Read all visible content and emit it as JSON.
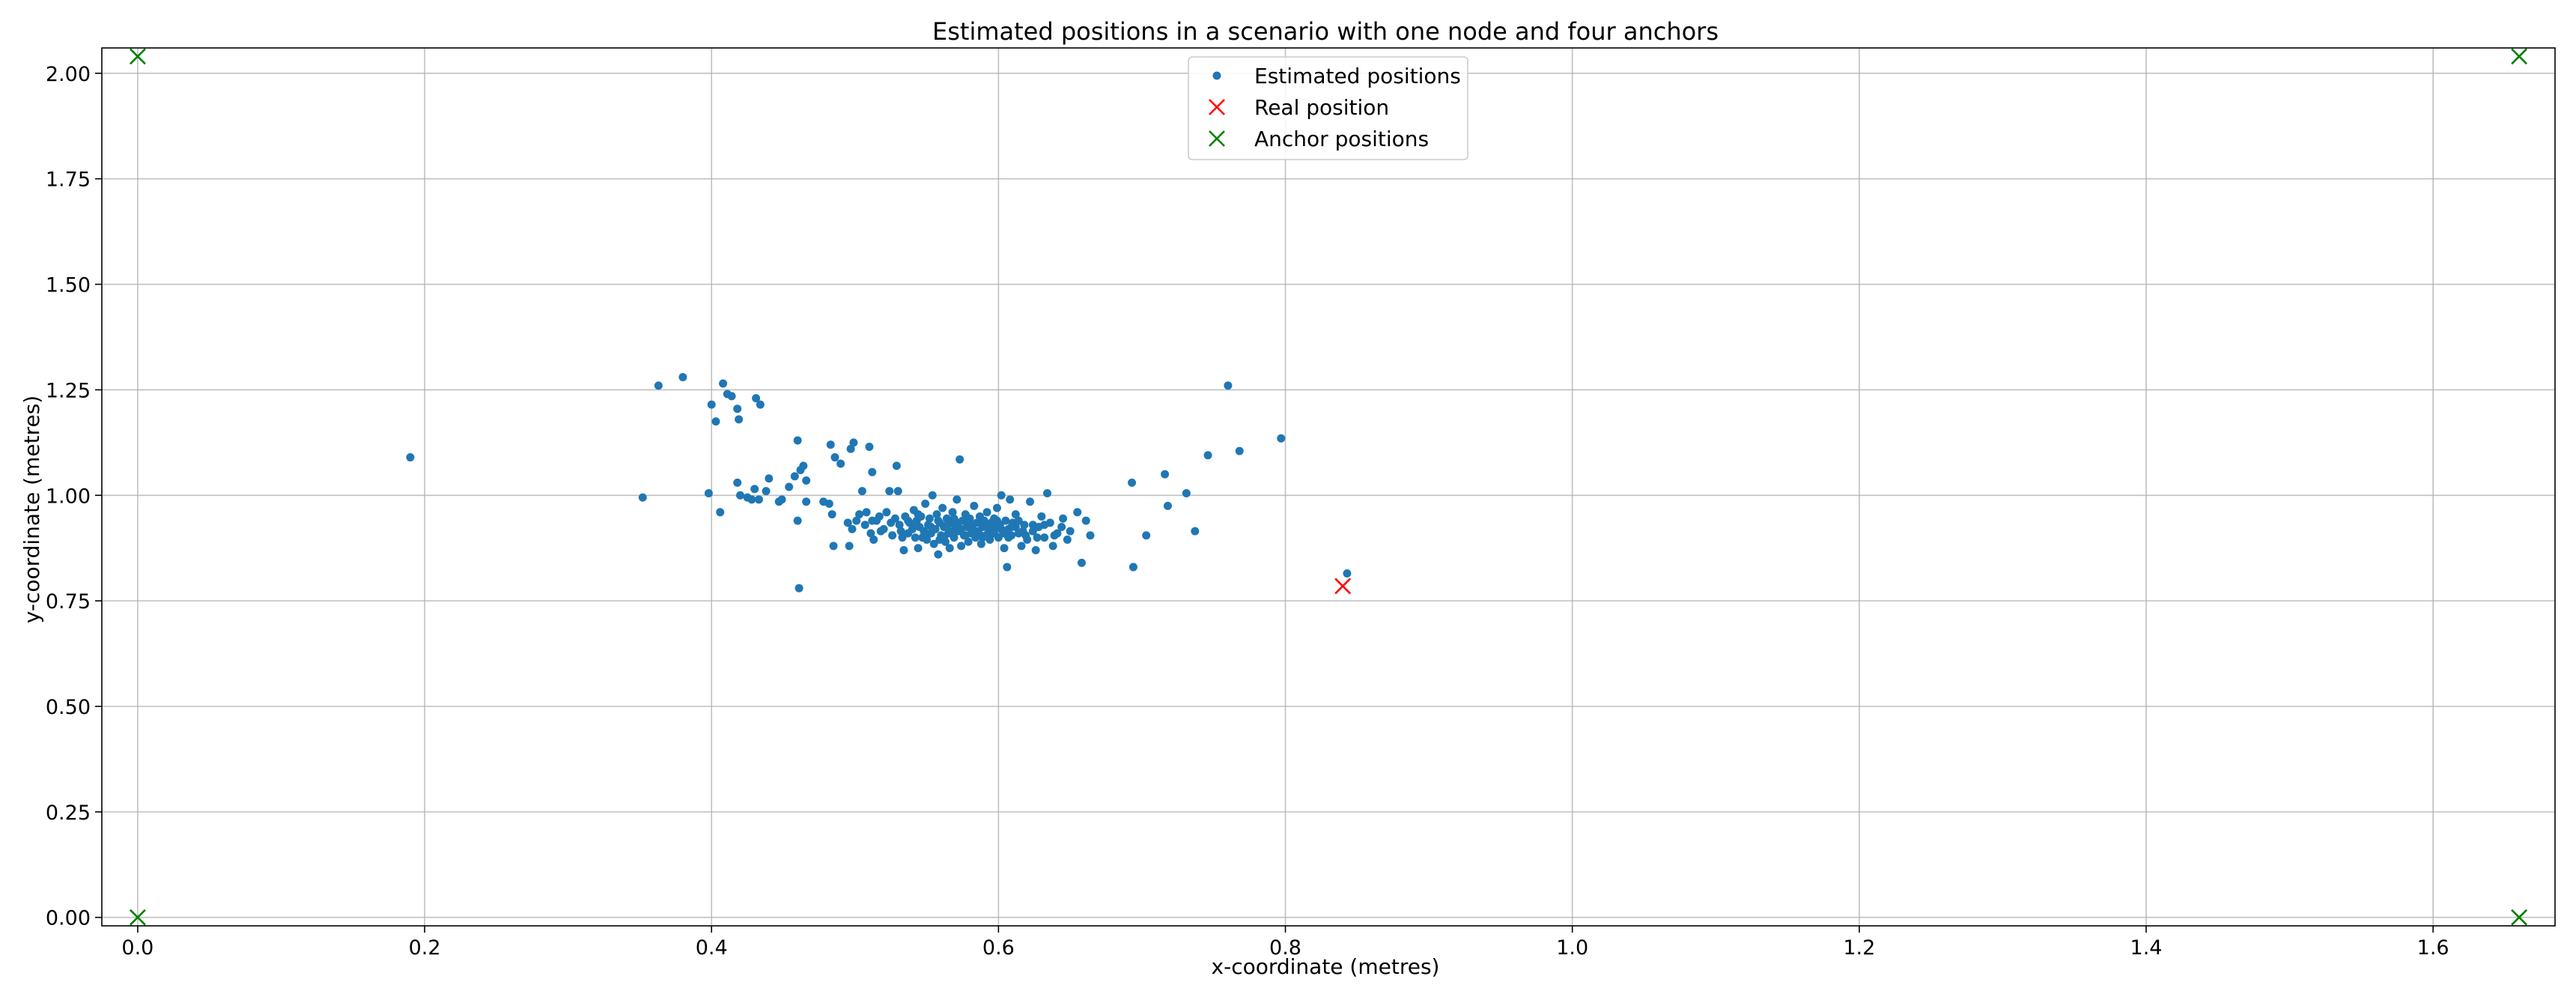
{
  "chart_data": {
    "type": "scatter",
    "title": "Estimated positions in a scenario with one node and four anchors",
    "xlabel": "x-coordinate (metres)",
    "ylabel": "y-coordinate (metres)",
    "xlim": [
      -0.025,
      1.685
    ],
    "ylim": [
      -0.02,
      2.06
    ],
    "x_ticks": [
      0.0,
      0.2,
      0.4,
      0.6,
      0.8,
      1.0,
      1.2,
      1.4,
      1.6
    ],
    "x_tick_labels": [
      "0.0",
      "0.2",
      "0.4",
      "0.6",
      "0.8",
      "1.0",
      "1.2",
      "1.4",
      "1.6"
    ],
    "y_ticks": [
      0.0,
      0.25,
      0.5,
      0.75,
      1.0,
      1.25,
      1.5,
      1.75,
      2.0
    ],
    "y_tick_labels": [
      "0.00",
      "0.25",
      "0.50",
      "0.75",
      "1.00",
      "1.25",
      "1.50",
      "1.75",
      "2.00"
    ],
    "grid": true,
    "legend_position": "top-center",
    "colors": {
      "estimated": "#1f77b4",
      "real": "#ff0000",
      "anchor": "#008000"
    },
    "series": [
      {
        "name": "Estimated positions",
        "marker": "dot",
        "color": "#1f77b4",
        "points": [
          [
            0.19,
            1.09
          ],
          [
            0.352,
            0.995
          ],
          [
            0.363,
            1.26
          ],
          [
            0.38,
            1.28
          ],
          [
            0.398,
            1.005
          ],
          [
            0.4,
            1.215
          ],
          [
            0.403,
            1.175
          ],
          [
            0.406,
            0.96
          ],
          [
            0.408,
            1.265
          ],
          [
            0.411,
            1.24
          ],
          [
            0.414,
            1.235
          ],
          [
            0.418,
            1.03
          ],
          [
            0.418,
            1.205
          ],
          [
            0.419,
            1.18
          ],
          [
            0.42,
            1.0
          ],
          [
            0.425,
            0.995
          ],
          [
            0.428,
            0.99
          ],
          [
            0.43,
            1.015
          ],
          [
            0.431,
            1.23
          ],
          [
            0.433,
            0.99
          ],
          [
            0.434,
            1.215
          ],
          [
            0.438,
            1.01
          ],
          [
            0.44,
            1.04
          ],
          [
            0.447,
            0.985
          ],
          [
            0.449,
            0.99
          ],
          [
            0.454,
            1.02
          ],
          [
            0.458,
            1.045
          ],
          [
            0.46,
            1.13
          ],
          [
            0.46,
            0.94
          ],
          [
            0.461,
            0.78
          ],
          [
            0.462,
            1.06
          ],
          [
            0.464,
            1.07
          ],
          [
            0.466,
            1.035
          ],
          [
            0.466,
            0.985
          ],
          [
            0.478,
            0.985
          ],
          [
            0.482,
            0.98
          ],
          [
            0.483,
            1.12
          ],
          [
            0.484,
            0.955
          ],
          [
            0.485,
            0.88
          ],
          [
            0.486,
            1.09
          ],
          [
            0.49,
            1.075
          ],
          [
            0.495,
            0.935
          ],
          [
            0.496,
            0.88
          ],
          [
            0.497,
            1.11
          ],
          [
            0.498,
            0.92
          ],
          [
            0.499,
            1.125
          ],
          [
            0.501,
            0.94
          ],
          [
            0.503,
            0.955
          ],
          [
            0.505,
            1.01
          ],
          [
            0.507,
            0.93
          ],
          [
            0.51,
            1.115
          ],
          [
            0.511,
            0.91
          ],
          [
            0.512,
            1.055
          ],
          [
            0.513,
            0.895
          ],
          [
            0.515,
            0.94
          ],
          [
            0.517,
            0.95
          ],
          [
            0.52,
            0.92
          ],
          [
            0.522,
            0.96
          ],
          [
            0.524,
            1.01
          ],
          [
            0.526,
            0.905
          ],
          [
            0.528,
            0.945
          ],
          [
            0.529,
            1.07
          ],
          [
            0.53,
            1.01
          ],
          [
            0.531,
            0.93
          ],
          [
            0.533,
            0.9
          ],
          [
            0.534,
            0.87
          ],
          [
            0.535,
            0.95
          ],
          [
            0.537,
            0.91
          ],
          [
            0.538,
            0.935
          ],
          [
            0.54,
            0.92
          ],
          [
            0.541,
            0.965
          ],
          [
            0.542,
            0.9
          ],
          [
            0.543,
            0.94
          ],
          [
            0.544,
            0.875
          ],
          [
            0.545,
            0.925
          ],
          [
            0.546,
            0.95
          ],
          [
            0.548,
            0.915
          ],
          [
            0.549,
            0.98
          ],
          [
            0.55,
            0.895
          ],
          [
            0.551,
            0.93
          ],
          [
            0.552,
            0.945
          ],
          [
            0.553,
            0.91
          ],
          [
            0.554,
            1.0
          ],
          [
            0.555,
            0.885
          ],
          [
            0.556,
            0.92
          ],
          [
            0.557,
            0.955
          ],
          [
            0.558,
            0.86
          ],
          [
            0.559,
            0.935
          ],
          [
            0.56,
            0.905
          ],
          [
            0.561,
            0.97
          ],
          [
            0.562,
            0.925
          ],
          [
            0.563,
            0.89
          ],
          [
            0.564,
            0.945
          ],
          [
            0.565,
            0.91
          ],
          [
            0.566,
            0.875
          ],
          [
            0.567,
            0.935
          ],
          [
            0.568,
            0.96
          ],
          [
            0.569,
            0.9
          ],
          [
            0.57,
            0.925
          ],
          [
            0.571,
            0.99
          ],
          [
            0.572,
            0.915
          ],
          [
            0.573,
            1.085
          ],
          [
            0.574,
            0.88
          ],
          [
            0.575,
            0.94
          ],
          [
            0.576,
            0.905
          ],
          [
            0.577,
            0.955
          ],
          [
            0.578,
            0.925
          ],
          [
            0.579,
            0.89
          ],
          [
            0.58,
            0.945
          ],
          [
            0.581,
            0.91
          ],
          [
            0.582,
            0.93
          ],
          [
            0.583,
            0.975
          ],
          [
            0.584,
            0.9
          ],
          [
            0.585,
            0.935
          ],
          [
            0.586,
            0.915
          ],
          [
            0.587,
            0.95
          ],
          [
            0.588,
            0.885
          ],
          [
            0.589,
            0.925
          ],
          [
            0.59,
            0.94
          ],
          [
            0.591,
            0.905
          ],
          [
            0.592,
            0.96
          ],
          [
            0.593,
            0.92
          ],
          [
            0.594,
            0.895
          ],
          [
            0.595,
            0.935
          ],
          [
            0.596,
            0.91
          ],
          [
            0.597,
            0.945
          ],
          [
            0.598,
            0.925
          ],
          [
            0.599,
            0.97
          ],
          [
            0.6,
            0.9
          ],
          [
            0.601,
            0.93
          ],
          [
            0.602,
            1.0
          ],
          [
            0.603,
            0.915
          ],
          [
            0.604,
            0.875
          ],
          [
            0.605,
            0.94
          ],
          [
            0.606,
            0.83
          ],
          [
            0.607,
            0.92
          ],
          [
            0.608,
            0.99
          ],
          [
            0.609,
            0.905
          ],
          [
            0.61,
            0.935
          ],
          [
            0.612,
            0.955
          ],
          [
            0.614,
            0.91
          ],
          [
            0.616,
            0.88
          ],
          [
            0.618,
            0.93
          ],
          [
            0.62,
            0.895
          ],
          [
            0.622,
            0.985
          ],
          [
            0.624,
            0.915
          ],
          [
            0.626,
            0.87
          ],
          [
            0.628,
            0.925
          ],
          [
            0.63,
            0.95
          ],
          [
            0.632,
            0.9
          ],
          [
            0.634,
            1.005
          ],
          [
            0.636,
            0.935
          ],
          [
            0.638,
            0.88
          ],
          [
            0.641,
            0.91
          ],
          [
            0.645,
            0.945
          ],
          [
            0.648,
            0.895
          ],
          [
            0.65,
            0.915
          ],
          [
            0.655,
            0.96
          ],
          [
            0.658,
            0.84
          ],
          [
            0.661,
            0.94
          ],
          [
            0.664,
            0.905
          ],
          [
            0.693,
            1.03
          ],
          [
            0.694,
            0.83
          ],
          [
            0.703,
            0.905
          ],
          [
            0.716,
            1.05
          ],
          [
            0.718,
            0.975
          ],
          [
            0.731,
            1.005
          ],
          [
            0.737,
            0.915
          ],
          [
            0.746,
            1.095
          ],
          [
            0.76,
            1.26
          ],
          [
            0.768,
            1.105
          ],
          [
            0.797,
            1.135
          ],
          [
            0.843,
            0.815
          ],
          [
            0.542,
            0.93
          ],
          [
            0.547,
            0.9
          ],
          [
            0.553,
            0.925
          ],
          [
            0.558,
            0.94
          ],
          [
            0.562,
            0.9
          ],
          [
            0.567,
            0.915
          ],
          [
            0.572,
            0.935
          ],
          [
            0.577,
            0.905
          ],
          [
            0.582,
            0.92
          ],
          [
            0.587,
            0.905
          ],
          [
            0.592,
            0.93
          ],
          [
            0.597,
            0.91
          ],
          [
            0.602,
            0.92
          ],
          [
            0.607,
            0.9
          ],
          [
            0.612,
            0.925
          ],
          [
            0.617,
            0.915
          ],
          [
            0.532,
            0.915
          ],
          [
            0.537,
            0.94
          ],
          [
            0.544,
            0.955
          ],
          [
            0.549,
            0.91
          ],
          [
            0.559,
            0.895
          ],
          [
            0.564,
            0.93
          ],
          [
            0.569,
            0.945
          ],
          [
            0.574,
            0.92
          ],
          [
            0.579,
            0.935
          ],
          [
            0.584,
            0.91
          ],
          [
            0.589,
            0.9
          ],
          [
            0.594,
            0.925
          ],
          [
            0.599,
            0.94
          ],
          [
            0.604,
            0.91
          ],
          [
            0.609,
            0.925
          ],
          [
            0.614,
            0.94
          ],
          [
            0.619,
            0.905
          ],
          [
            0.624,
            0.93
          ],
          [
            0.627,
            0.9
          ],
          [
            0.525,
            0.935
          ],
          [
            0.518,
            0.915
          ],
          [
            0.512,
            0.94
          ],
          [
            0.508,
            0.96
          ],
          [
            0.632,
            0.93
          ],
          [
            0.639,
            0.905
          ],
          [
            0.644,
            0.925
          ]
        ]
      },
      {
        "name": "Real position",
        "marker": "x",
        "color": "#ff0000",
        "points": [
          [
            0.84,
            0.785
          ]
        ]
      },
      {
        "name": "Anchor positions",
        "marker": "x",
        "color": "#008000",
        "points": [
          [
            0.0,
            2.04
          ],
          [
            1.66,
            2.04
          ],
          [
            0.0,
            0.0
          ],
          [
            1.66,
            0.0
          ]
        ]
      }
    ]
  }
}
